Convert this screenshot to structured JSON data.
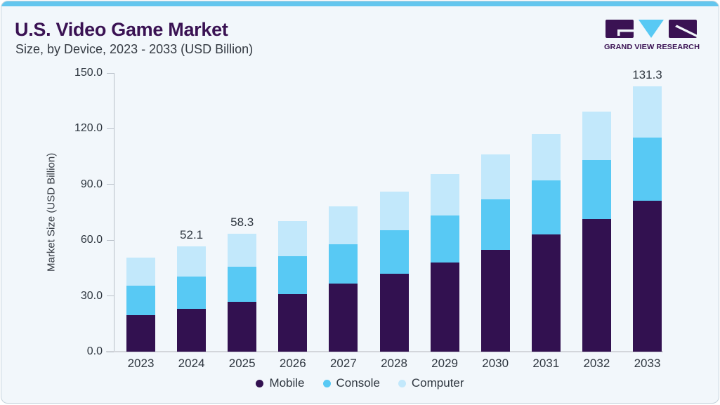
{
  "header": {
    "title": "U.S. Video Game Market",
    "subtitle": "Size, by Device, 2023 - 2033 (USD Billion)"
  },
  "brand": {
    "name": "GRAND VIEW RESEARCH"
  },
  "chart_data": {
    "type": "bar",
    "stacked": true,
    "title": "U.S. Video Game Market Size, by Device, 2023 - 2033 (USD Billion)",
    "xlabel": "",
    "ylabel": "Market Size (USD Billion)",
    "ylim": [
      0,
      150
    ],
    "y_ticks": [
      "0.0",
      "30.0",
      "60.0",
      "90.0",
      "120.0",
      "150.0"
    ],
    "grid": false,
    "legend_position": "bottom",
    "categories": [
      "2023",
      "2024",
      "2025",
      "2026",
      "2027",
      "2028",
      "2029",
      "2030",
      "2031",
      "2032",
      "2033"
    ],
    "series": [
      {
        "name": "Mobile",
        "color": "#321150",
        "values": [
          18.2,
          21.2,
          24.7,
          28.5,
          33.7,
          38.6,
          44.1,
          50.4,
          58.0,
          65.6,
          74.7
        ]
      },
      {
        "name": "Console",
        "color": "#58c9f4",
        "values": [
          14.3,
          16.0,
          17.3,
          18.7,
          19.4,
          21.5,
          23.3,
          25.0,
          26.8,
          29.2,
          31.2
        ]
      },
      {
        "name": "Computer",
        "color": "#c2e8fb",
        "values": [
          14.2,
          14.9,
          16.3,
          17.4,
          18.9,
          19.1,
          20.5,
          22.2,
          22.9,
          24.0,
          25.4
        ]
      }
    ],
    "totals": [
      46.7,
      52.1,
      58.3,
      64.6,
      72.0,
      79.2,
      87.9,
      97.6,
      107.7,
      118.8,
      131.3
    ],
    "bar_labels": [
      null,
      "52.1",
      "58.3",
      null,
      null,
      null,
      null,
      null,
      null,
      null,
      "131.3"
    ]
  },
  "colors": {
    "background": "#f2f7fb",
    "accent_bar": "#64c6ee",
    "card_border": "#c5d3dc",
    "title_purple": "#3a1253",
    "text": "#2f3740",
    "axis": "#b9c0c9",
    "baseline": "#d3d6db",
    "mobile": "#321150",
    "console": "#58c9f4",
    "computer": "#c2e8fb"
  }
}
